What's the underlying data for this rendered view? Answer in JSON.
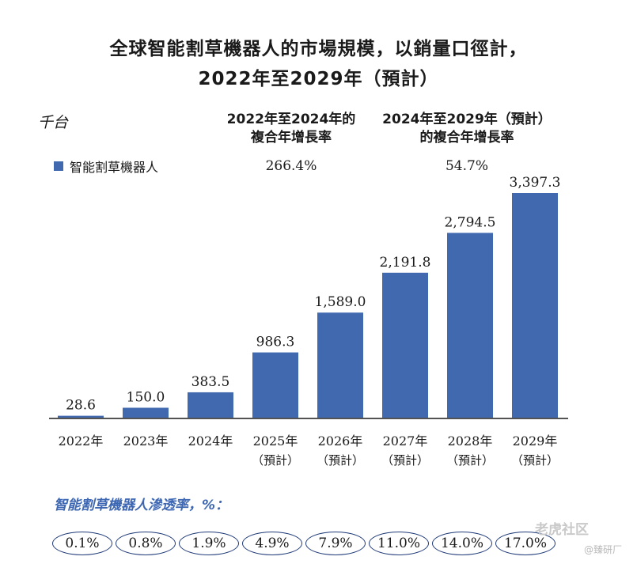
{
  "header": {
    "title_line1": "全球智能割草機器人的市場規模，以銷量口徑計，",
    "title_line2": "2022年至2029年（預計）",
    "unit": "千台"
  },
  "cagr": [
    {
      "label_line1": "2022年至2024年的",
      "label_line2": "複合年增長率",
      "value": "266.4%"
    },
    {
      "label_line1": "2024年至2029年（預計）",
      "label_line2": "的複合年增長率",
      "value": "54.7%"
    }
  ],
  "legend": {
    "label": "智能割草機器人"
  },
  "chart_data": {
    "type": "bar",
    "title": "全球智能割草機器人的市場規模，以銷量口徑計，2022年至2029年（預計）",
    "ylabel": "千台",
    "categories": [
      "2022年",
      "2023年",
      "2024年",
      "2025年",
      "2026年",
      "2027年",
      "2028年",
      "2029年"
    ],
    "category_sublabels": [
      "",
      "",
      "",
      "（預計）",
      "（預計）",
      "（預計）",
      "（預計）",
      "（預計）"
    ],
    "series": [
      {
        "name": "智能割草機器人",
        "values": [
          28.6,
          150.0,
          383.5,
          986.3,
          1589.0,
          2191.8,
          2794.5,
          3397.3
        ]
      }
    ],
    "value_labels": [
      "28.6",
      "150.0",
      "383.5",
      "986.3",
      "1,589.0",
      "2,191.8",
      "2,794.5",
      "3,397.3"
    ],
    "ylim": [
      0,
      3397.3
    ],
    "grid": false,
    "color": "#4169b0"
  },
  "penetration": {
    "title": "智能割草機器人滲透率，%：",
    "values": [
      "0.1%",
      "0.8%",
      "1.9%",
      "4.9%",
      "7.9%",
      "11.0%",
      "14.0%",
      "17.0%"
    ]
  },
  "watermark": {
    "brand": "老虎社区",
    "sub": "@臻研厂"
  }
}
